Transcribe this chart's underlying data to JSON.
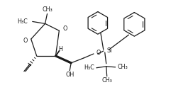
{
  "bg_color": "#ffffff",
  "line_color": "#1a1a1a",
  "lw": 0.9,
  "fs": 5.8,
  "fig_width": 2.41,
  "fig_height": 1.44,
  "dpi": 100,
  "xlim": [
    0,
    241
  ],
  "ylim": [
    0,
    144
  ]
}
